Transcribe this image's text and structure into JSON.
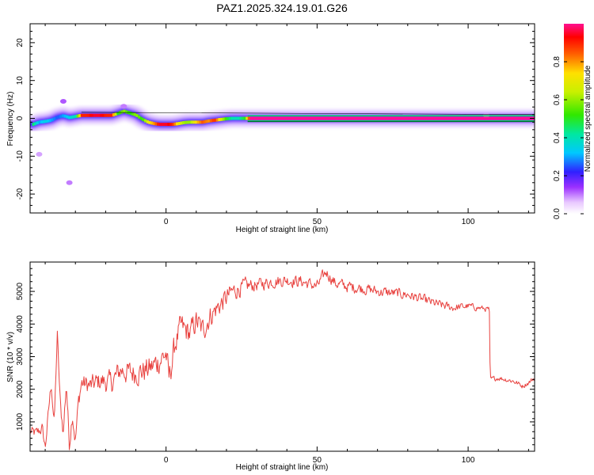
{
  "figure_title": "PAZ1.2025.324.19.01.G26",
  "chart_data": [
    {
      "type": "heatmap",
      "xlabel": "Height of straight line (km)",
      "ylabel": "Frequency (Hz)",
      "xlim": [
        -45,
        122
      ],
      "ylim": [
        -25,
        25
      ],
      "xticks": [
        0,
        50,
        100
      ],
      "yticks": [
        -20,
        -10,
        0,
        10,
        20
      ],
      "track": {
        "x": [
          -44,
          -42,
          -40,
          -38,
          -36,
          -34,
          -32,
          -30,
          -28,
          -26,
          -24,
          -22,
          -20,
          -18,
          -16,
          -14,
          -12,
          -10,
          -8,
          -6,
          -4,
          -2,
          0,
          2,
          4,
          6,
          8,
          10,
          12,
          14,
          16,
          18,
          20,
          22,
          24,
          26,
          28,
          122
        ],
        "y": [
          -1.6,
          -1.0,
          -0.8,
          -0.5,
          0.3,
          0.7,
          0.2,
          0.5,
          0.8,
          0.8,
          0.8,
          0.8,
          0.8,
          0.8,
          1.3,
          1.9,
          1.4,
          0.9,
          -0.2,
          -1.0,
          -1.4,
          -1.6,
          -1.6,
          -1.6,
          -1.4,
          -1.1,
          -1.0,
          -1.0,
          -1.0,
          -0.7,
          -0.5,
          -0.3,
          -0.1,
          0.0,
          0.0,
          0.0,
          0.0,
          0.0
        ],
        "amplitude": [
          0.45,
          0.3,
          0.35,
          0.3,
          0.25,
          0.3,
          0.35,
          0.4,
          0.9,
          0.9,
          0.95,
          0.95,
          0.9,
          0.9,
          0.5,
          0.6,
          0.5,
          0.6,
          0.5,
          0.7,
          0.8,
          0.95,
          0.95,
          0.9,
          0.7,
          0.6,
          0.6,
          0.75,
          0.85,
          0.8,
          0.9,
          0.7,
          0.5,
          0.4,
          0.4,
          0.5,
          1.0,
          1.0
        ]
      },
      "colorbar": {
        "label": "Normalized spectral amplitude",
        "range": [
          0.0,
          1.0
        ],
        "ticks": [
          "0.0",
          "0.2",
          "0.4",
          "0.6",
          "0.8"
        ]
      }
    },
    {
      "type": "line",
      "xlabel": "Height of straight line (km)",
      "ylabel": "SNR (10 * v/v)",
      "xlim": [
        -45,
        122
      ],
      "ylim": [
        100,
        5900
      ],
      "xticks": [
        0,
        50,
        100
      ],
      "yticks": [
        1000,
        2000,
        3000,
        4000,
        5000
      ],
      "color": "#e8423f",
      "anchors": [
        [
          -45,
          700
        ],
        [
          -43,
          650
        ],
        [
          -41,
          800
        ],
        [
          -40,
          200
        ],
        [
          -39,
          1200
        ],
        [
          -38,
          2200
        ],
        [
          -37,
          900
        ],
        [
          -36,
          3700
        ],
        [
          -35,
          1500
        ],
        [
          -34,
          700
        ],
        [
          -33,
          2200
        ],
        [
          -32,
          300
        ],
        [
          -31,
          1300
        ],
        [
          -30,
          400
        ],
        [
          -29,
          1600
        ],
        [
          -28,
          2200
        ],
        [
          -25,
          2100
        ],
        [
          -22,
          2250
        ],
        [
          -18,
          2200
        ],
        [
          -15,
          2600
        ],
        [
          -12,
          2500
        ],
        [
          -8,
          2550
        ],
        [
          -5,
          2650
        ],
        [
          -2,
          2900
        ],
        [
          0,
          3100
        ],
        [
          1,
          2300
        ],
        [
          3,
          3400
        ],
        [
          5,
          3900
        ],
        [
          8,
          3700
        ],
        [
          10,
          4100
        ],
        [
          12,
          3800
        ],
        [
          15,
          4300
        ],
        [
          18,
          4600
        ],
        [
          22,
          5000
        ],
        [
          26,
          5150
        ],
        [
          30,
          5200
        ],
        [
          35,
          5300
        ],
        [
          40,
          5350
        ],
        [
          45,
          5300
        ],
        [
          50,
          5150
        ],
        [
          53,
          5600
        ],
        [
          56,
          5250
        ],
        [
          60,
          5150
        ],
        [
          65,
          5100
        ],
        [
          70,
          5000
        ],
        [
          75,
          4950
        ],
        [
          80,
          4900
        ],
        [
          85,
          4750
        ],
        [
          90,
          4600
        ],
        [
          95,
          4500
        ],
        [
          100,
          4550
        ],
        [
          103,
          4500
        ],
        [
          107,
          4450
        ],
        [
          107.3,
          2300
        ],
        [
          110,
          2350
        ],
        [
          115,
          2250
        ],
        [
          118,
          2100
        ],
        [
          120,
          2200
        ],
        [
          122,
          2350
        ]
      ],
      "noise_amplitude": [
        [
          -45,
          250
        ],
        [
          -28,
          450
        ],
        [
          -15,
          550
        ],
        [
          0,
          650
        ],
        [
          15,
          550
        ],
        [
          30,
          300
        ],
        [
          60,
          280
        ],
        [
          90,
          220
        ],
        [
          107,
          120
        ],
        [
          122,
          120
        ]
      ]
    }
  ]
}
